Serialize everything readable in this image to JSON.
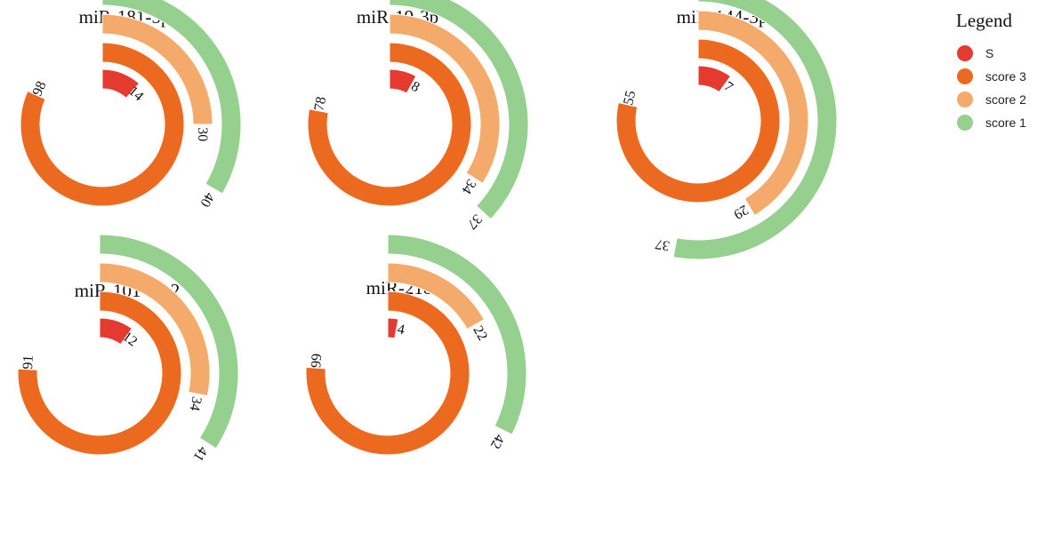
{
  "legend": {
    "title": "Legend",
    "items": [
      {
        "label": "S",
        "color": "#e53a2f"
      },
      {
        "label": "score 3",
        "color": "#ec6a1f"
      },
      {
        "label": "score 2",
        "color": "#f4aa6a"
      },
      {
        "label": "score 1",
        "color": "#95d08e"
      }
    ]
  },
  "chart_data": [
    {
      "type": "radial-bar",
      "title": "miR-181-5p",
      "scale_max": 120,
      "series": [
        {
          "name": "S",
          "value": 14
        },
        {
          "name": "score 3",
          "value": 98
        },
        {
          "name": "score 2",
          "value": 30
        },
        {
          "name": "score 1",
          "value": 40
        }
      ]
    },
    {
      "type": "radial-bar",
      "title": "miR-19-3p",
      "scale_max": 100,
      "series": [
        {
          "name": "S",
          "value": 8
        },
        {
          "name": "score 3",
          "value": 78
        },
        {
          "name": "score 2",
          "value": 34
        },
        {
          "name": "score 1",
          "value": 37
        }
      ]
    },
    {
      "type": "radial-bar",
      "title": "miR-144-3p",
      "scale_max": 70,
      "series": [
        {
          "name": "S",
          "value": 7
        },
        {
          "name": "score 3",
          "value": 55
        },
        {
          "name": "score 2",
          "value": 29
        },
        {
          "name": "score 1",
          "value": 37
        }
      ]
    },
    {
      "type": "radial-bar",
      "title": "miR-101-3p.2",
      "scale_max": 120,
      "series": [
        {
          "name": "S",
          "value": 12
        },
        {
          "name": "score 3",
          "value": 91
        },
        {
          "name": "score 2",
          "value": 34
        },
        {
          "name": "score 1",
          "value": 41
        }
      ]
    },
    {
      "type": "radial-bar",
      "title": "miR-218-5p",
      "scale_max": 130,
      "series": [
        {
          "name": "S",
          "value": 4
        },
        {
          "name": "score 3",
          "value": 99
        },
        {
          "name": "score 2",
          "value": 22
        },
        {
          "name": "score 1",
          "value": 42
        }
      ]
    }
  ]
}
